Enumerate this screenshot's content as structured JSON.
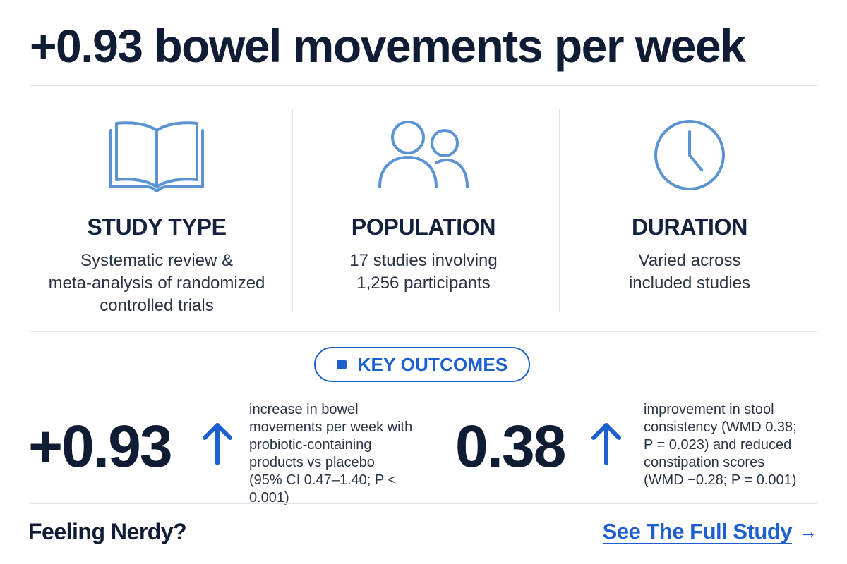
{
  "headline": "+0.93 bowel movements per week",
  "columns": [
    {
      "icon": "open-book-icon",
      "title": "STUDY TYPE",
      "lines": [
        "Systematic review &",
        "meta-analysis of randomized",
        "controlled trials"
      ]
    },
    {
      "icon": "people-icon",
      "title": "POPULATION",
      "lines": [
        "17 studies involving",
        "1,256 participants"
      ]
    },
    {
      "icon": "clock-icon",
      "title": "DURATION",
      "lines": [
        "Varied across",
        "included studies"
      ]
    }
  ],
  "key_outcomes": {
    "label": "KEY OUTCOMES"
  },
  "outcomes": [
    {
      "value": "+0.93",
      "arrow_icon": "arrow-up-icon",
      "lines": [
        "increase in bowel",
        "movements per week with",
        "probiotic-containing",
        "products vs placebo",
        "(95% CI 0.47–1.40; P < 0.001)"
      ]
    },
    {
      "value": "0.38",
      "arrow_icon": "arrow-up-icon",
      "lines": [
        "improvement in stool",
        "consistency (WMD 0.38;",
        "P = 0.023) and reduced",
        "constipation scores",
        "(WMD −0.28; P = 0.001)"
      ]
    }
  ],
  "footer": {
    "left_text": "Feeling Nerdy?",
    "link_text": "See The Full Study",
    "link_arrow": "→"
  },
  "colors": {
    "icon_stroke": "#5b93d3",
    "accent_blue": "#1d5fcf",
    "text_dark": "#0f1c33"
  }
}
